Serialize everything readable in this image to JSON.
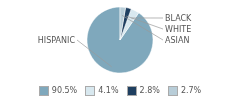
{
  "chart_data": {
    "type": "pie",
    "categories": [
      "HISPANIC",
      "BLACK",
      "WHITE",
      "ASIAN"
    ],
    "values": [
      90.5,
      4.1,
      2.8,
      2.7
    ],
    "value_labels": [
      "90.5%",
      "4.1%",
      "2.8%",
      "2.7%"
    ],
    "colors": [
      "#7fa8bc",
      "#d8e8ef",
      "#1f3f60",
      "#b8cdd8"
    ],
    "legend": "bottom"
  }
}
